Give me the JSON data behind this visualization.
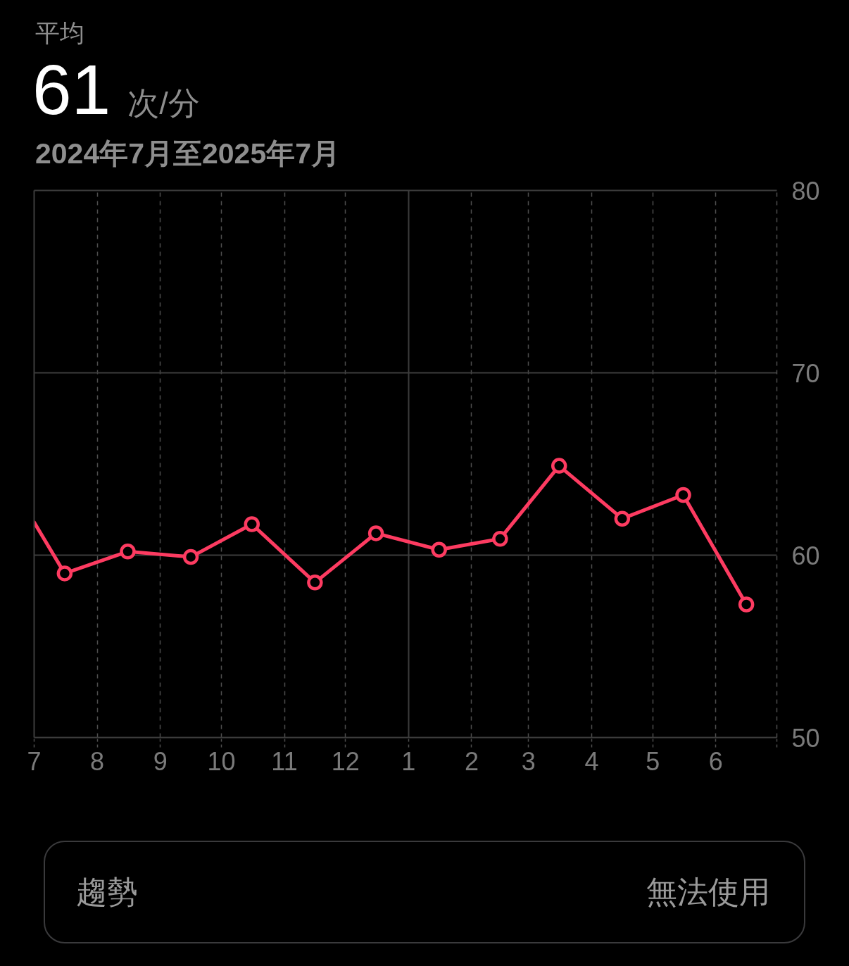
{
  "chart_data": {
    "type": "line",
    "title": "平均",
    "subtitle": "2024年7月至2025年7月",
    "annotations": [
      "61",
      "次/分",
      "趨勢",
      "無法使用"
    ],
    "x": [
      "2024-07-16",
      "2024-08-16",
      "2024-09-16",
      "2024-10-16",
      "2024-11-16",
      "2024-12-16",
      "2025-01-16",
      "2025-02-15",
      "2025-03-16",
      "2025-04-16",
      "2025-05-16",
      "2025-06-16"
    ],
    "series": [
      {
        "color": "#fd3b61",
        "x": [
          "2024-07-01",
          "2024-07-16"
        ],
        "values": [
          61.8,
          59.0
        ]
      },
      {
        "color": "#fd3b61",
        "values": [
          59.0,
          60.2,
          59.9,
          61.7,
          58.5,
          61.2,
          60.3,
          60.9,
          64.9,
          62.0,
          63.3,
          57.3
        ],
        "marker": "circle"
      }
    ],
    "xlim": [
      "2024-07-01",
      "2025-07-01"
    ],
    "xticks": [
      {
        "value": "2024-07-01",
        "label": "7"
      },
      {
        "value": "2024-08-01",
        "label": "8"
      },
      {
        "value": "2024-09-01",
        "label": "9"
      },
      {
        "value": "2024-10-01",
        "label": "10"
      },
      {
        "value": "2024-11-01",
        "label": "11"
      },
      {
        "value": "2024-12-01",
        "label": "12"
      },
      {
        "value": "2025-01-01",
        "label": "1"
      },
      {
        "value": "2025-02-01",
        "label": "2"
      },
      {
        "value": "2025-03-01",
        "label": "3"
      },
      {
        "value": "2025-04-01",
        "label": "4"
      },
      {
        "value": "2025-05-01",
        "label": "5"
      },
      {
        "value": "2025-06-01",
        "label": "6"
      },
      {
        "value": "2025-07-01",
        "label": null
      }
    ],
    "ylim": [
      50,
      80
    ],
    "yticks": [
      50,
      60,
      70,
      80
    ],
    "grid": true,
    "line_style": "solid"
  }
}
